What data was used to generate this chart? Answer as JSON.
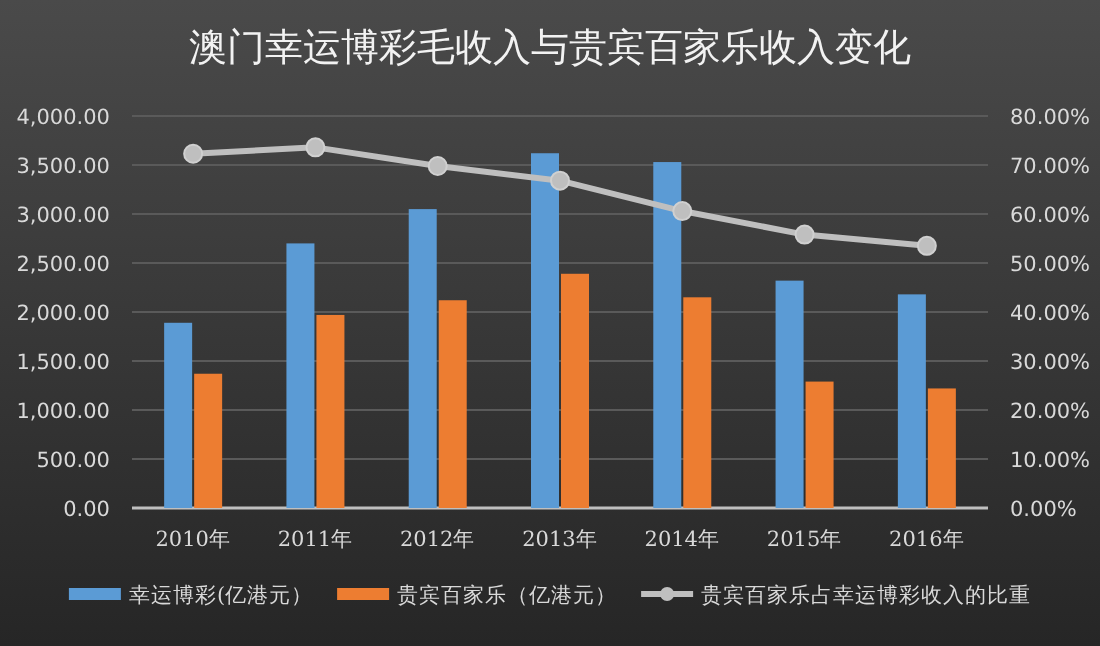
{
  "chart_data": {
    "type": "bar",
    "title": "澳门幸运博彩毛收入与贵宾百家乐收入变化",
    "categories": [
      "2010年",
      "2011年",
      "2012年",
      "2013年",
      "2014年",
      "2015年",
      "2016年"
    ],
    "series": [
      {
        "name": "幸运博彩(亿港元）",
        "color": "#5b9bd5",
        "values": [
          1890,
          2700,
          3050,
          3620,
          3530,
          2320,
          2180
        ]
      },
      {
        "name": "贵宾百家乐（亿港元）",
        "color": "#ed7d31",
        "values": [
          1370,
          1970,
          2120,
          2390,
          2150,
          1290,
          1220
        ]
      },
      {
        "name": "贵宾百家乐占幸运博彩收入的比重",
        "type": "line",
        "axis": "y2",
        "color": "#bfbfbf",
        "marker": "circle",
        "values": [
          72.3,
          73.6,
          69.8,
          66.8,
          60.6,
          55.8,
          53.5
        ]
      }
    ],
    "ylim": [
      0,
      4000
    ],
    "yticks": [
      {
        "value": 0,
        "label": "0.00"
      },
      {
        "value": 500,
        "label": "500.00"
      },
      {
        "value": 1000,
        "label": "1,000.00"
      },
      {
        "value": 1500,
        "label": "1,500.00"
      },
      {
        "value": 2000,
        "label": "2,000.00"
      },
      {
        "value": 2500,
        "label": "2,500.00"
      },
      {
        "value": 3000,
        "label": "3,000.00"
      },
      {
        "value": 3500,
        "label": "3,500.00"
      },
      {
        "value": 4000,
        "label": "4,000.00"
      }
    ],
    "y2lim": [
      0,
      80
    ],
    "y2ticks": [
      {
        "value": 0,
        "label": "0.00%"
      },
      {
        "value": 10,
        "label": "10.00%"
      },
      {
        "value": 20,
        "label": "20.00%"
      },
      {
        "value": 30,
        "label": "30.00%"
      },
      {
        "value": 40,
        "label": "40.00%"
      },
      {
        "value": 50,
        "label": "50.00%"
      },
      {
        "value": 60,
        "label": "60.00%"
      },
      {
        "value": 70,
        "label": "70.00%"
      },
      {
        "value": 80,
        "label": "80.00%"
      }
    ],
    "grid": "y",
    "legend": "bottom"
  }
}
